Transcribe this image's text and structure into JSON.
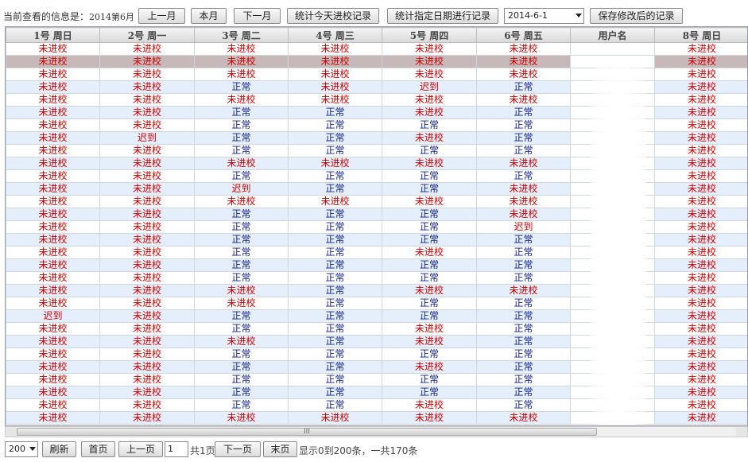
{
  "toolbar": {
    "info_label": "当前查看的信息是：",
    "period": "2014第6月",
    "prev_month": "上一月",
    "this_month": "本月",
    "next_month": "下一月",
    "stat_today": "统计今天进校记录",
    "stat_date": "统计指定日期进行记录",
    "date_value": "2014-6-1",
    "save": "保存修改后的记录"
  },
  "grid": {
    "headers": [
      "1号 周日",
      "2号 周一",
      "3号 周二",
      "4号 周三",
      "5号 周四",
      "6号 周五",
      "用户名",
      "8号 周日"
    ],
    "rows": [
      [
        "未进校",
        "未进校",
        "未进校",
        "未进校",
        "未进校",
        "未进校",
        "",
        "未进校"
      ],
      [
        "未进校",
        "未进校",
        "未进校",
        "未进校",
        "未进校",
        "未进校",
        "",
        "未进校"
      ],
      [
        "未进校",
        "未进校",
        "未进校",
        "未进校",
        "未进校",
        "未进校",
        "",
        "未进校"
      ],
      [
        "未进校",
        "未进校",
        "正常",
        "未进校",
        "迟到",
        "正常",
        "",
        "未进校"
      ],
      [
        "未进校",
        "未进校",
        "未进校",
        "未进校",
        "未进校",
        "未进校",
        "",
        "未进校"
      ],
      [
        "未进校",
        "未进校",
        "正常",
        "正常",
        "未进校",
        "正常",
        "",
        "未进校"
      ],
      [
        "未进校",
        "未进校",
        "正常",
        "正常",
        "正常",
        "正常",
        "",
        "未进校"
      ],
      [
        "未进校",
        "迟到",
        "正常",
        "正常",
        "未进校",
        "正常",
        "",
        "未进校"
      ],
      [
        "未进校",
        "未进校",
        "正常",
        "正常",
        "正常",
        "正常",
        "",
        "未进校"
      ],
      [
        "未进校",
        "未进校",
        "未进校",
        "未进校",
        "未进校",
        "未进校",
        "",
        "未进校"
      ],
      [
        "未进校",
        "未进校",
        "正常",
        "正常",
        "正常",
        "正常",
        "",
        "未进校"
      ],
      [
        "未进校",
        "未进校",
        "迟到",
        "正常",
        "正常",
        "未进校",
        "",
        "未进校"
      ],
      [
        "未进校",
        "未进校",
        "未进校",
        "未进校",
        "未进校",
        "未进校",
        "",
        "未进校"
      ],
      [
        "未进校",
        "未进校",
        "正常",
        "正常",
        "正常",
        "未进校",
        "",
        "未进校"
      ],
      [
        "未进校",
        "未进校",
        "正常",
        "正常",
        "正常",
        "迟到",
        "",
        "未进校"
      ],
      [
        "未进校",
        "未进校",
        "正常",
        "正常",
        "正常",
        "正常",
        "",
        "未进校"
      ],
      [
        "未进校",
        "未进校",
        "正常",
        "正常",
        "未进校",
        "正常",
        "",
        "未进校"
      ],
      [
        "未进校",
        "未进校",
        "正常",
        "正常",
        "正常",
        "正常",
        "",
        "未进校"
      ],
      [
        "未进校",
        "未进校",
        "正常",
        "正常",
        "正常",
        "正常",
        "",
        "未进校"
      ],
      [
        "未进校",
        "未进校",
        "未进校",
        "正常",
        "未进校",
        "未进校",
        "",
        "未进校"
      ],
      [
        "未进校",
        "未进校",
        "未进校",
        "正常",
        "正常",
        "正常",
        "",
        "未进校"
      ],
      [
        "迟到",
        "未进校",
        "正常",
        "正常",
        "正常",
        "正常",
        "",
        "未进校"
      ],
      [
        "未进校",
        "未进校",
        "正常",
        "正常",
        "未进校",
        "正常",
        "",
        "未进校"
      ],
      [
        "未进校",
        "未进校",
        "未进校",
        "正常",
        "未进校",
        "正常",
        "",
        "未进校"
      ],
      [
        "未进校",
        "未进校",
        "正常",
        "正常",
        "正常",
        "正常",
        "",
        "未进校"
      ],
      [
        "未进校",
        "未进校",
        "正常",
        "正常",
        "未进校",
        "正常",
        "",
        "未进校"
      ],
      [
        "未进校",
        "未进校",
        "正常",
        "正常",
        "正常",
        "正常",
        "",
        "未进校"
      ],
      [
        "未进校",
        "未进校",
        "正常",
        "正常",
        "正常",
        "正常",
        "",
        "未进校"
      ],
      [
        "未进校",
        "未进校",
        "正常",
        "正常",
        "未进校",
        "正常",
        "",
        "未进校"
      ],
      [
        "未进校",
        "未进校",
        "未进校",
        "未进校",
        "未进校",
        "未进校",
        "",
        "未进校"
      ]
    ],
    "selected_row": 1,
    "colors": {
      "absent": "#cc0000",
      "normal": "#10208a",
      "even_row": "#e5eefb",
      "selected_row": "#c7b9b9"
    }
  },
  "pager": {
    "page_size": "200",
    "refresh": "刷新",
    "first": "首页",
    "prev": "上一页",
    "page": "1",
    "total_pages": "共1页",
    "next": "下一页",
    "last": "末页",
    "summary": "显示0到200条，一共170条"
  },
  "scrollbar": {
    "thumb_glyph": "III"
  }
}
